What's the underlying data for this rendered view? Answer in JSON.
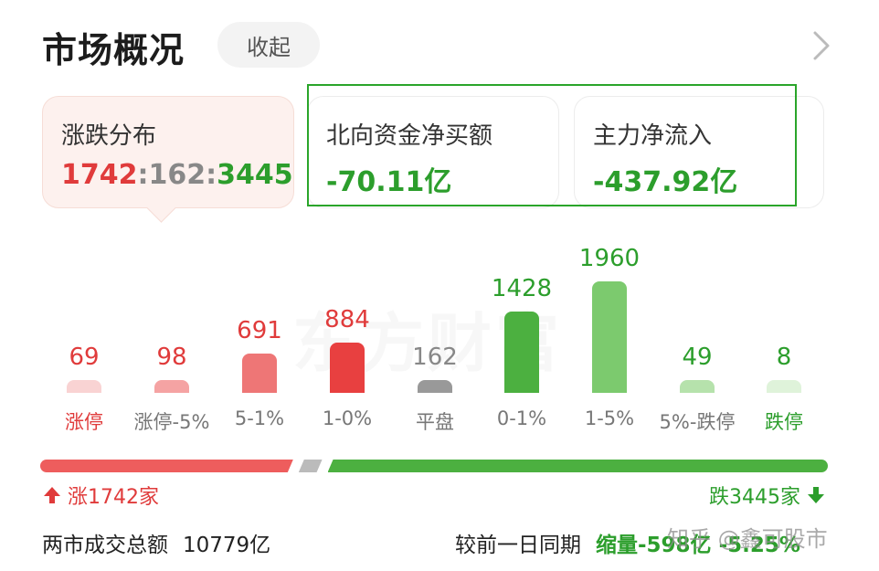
{
  "header": {
    "title": "市场概况",
    "collapse_label": "收起",
    "chevron_icon": "chevron-right-icon"
  },
  "cards": {
    "distribution": {
      "label": "涨跌分布",
      "up": "1742",
      "flat": "162",
      "down": "3445",
      "sep": ":"
    },
    "northbound": {
      "label": "北向资金净买额",
      "value": "-70.11亿"
    },
    "main_flow": {
      "label": "主力净流入",
      "value": "-437.92亿"
    }
  },
  "watermark": "东方财富",
  "chart_data": {
    "type": "bar",
    "categories": [
      "涨停",
      "涨停-5%",
      "5-1%",
      "1-0%",
      "平盘",
      "0-1%",
      "1-5%",
      "5%-跌停",
      "跌停"
    ],
    "values": [
      69,
      98,
      691,
      884,
      162,
      1428,
      1960,
      49,
      8
    ],
    "colors": [
      "#f9d3d3",
      "#f5a3a3",
      "#ee7676",
      "#e84040",
      "#999999",
      "#4cb040",
      "#7cca6e",
      "#b6e2ac",
      "#dff3da"
    ],
    "label_colors": [
      "#e03b3b",
      "#e03b3b",
      "#e03b3b",
      "#e03b3b",
      "#888888",
      "#2c9e2c",
      "#2c9e2c",
      "#2c9e2c",
      "#2c9e2c"
    ],
    "cat_label_colors": [
      "#e03b3b",
      "#777777",
      "#777777",
      "#777777",
      "#777777",
      "#777777",
      "#777777",
      "#777777",
      "#2c9e2c"
    ]
  },
  "ratio_bar": {
    "up": 1742,
    "flat": 162,
    "down": 3445,
    "up_color": "#ee5d5d",
    "flat_color": "#bbbbbb",
    "down_color": "#4cb040"
  },
  "footer": {
    "up_text": "涨1742家",
    "down_text": "跌3445家",
    "up_icon": "arrow-up-icon",
    "down_icon": "arrow-down-icon"
  },
  "turnover": {
    "label": "两市成交总额",
    "value": "10779亿"
  },
  "compare": {
    "label": "较前一日同期",
    "change": "缩量-598亿 -5.25%"
  },
  "zhihu_watermark": "知乎 @鑫可股市"
}
